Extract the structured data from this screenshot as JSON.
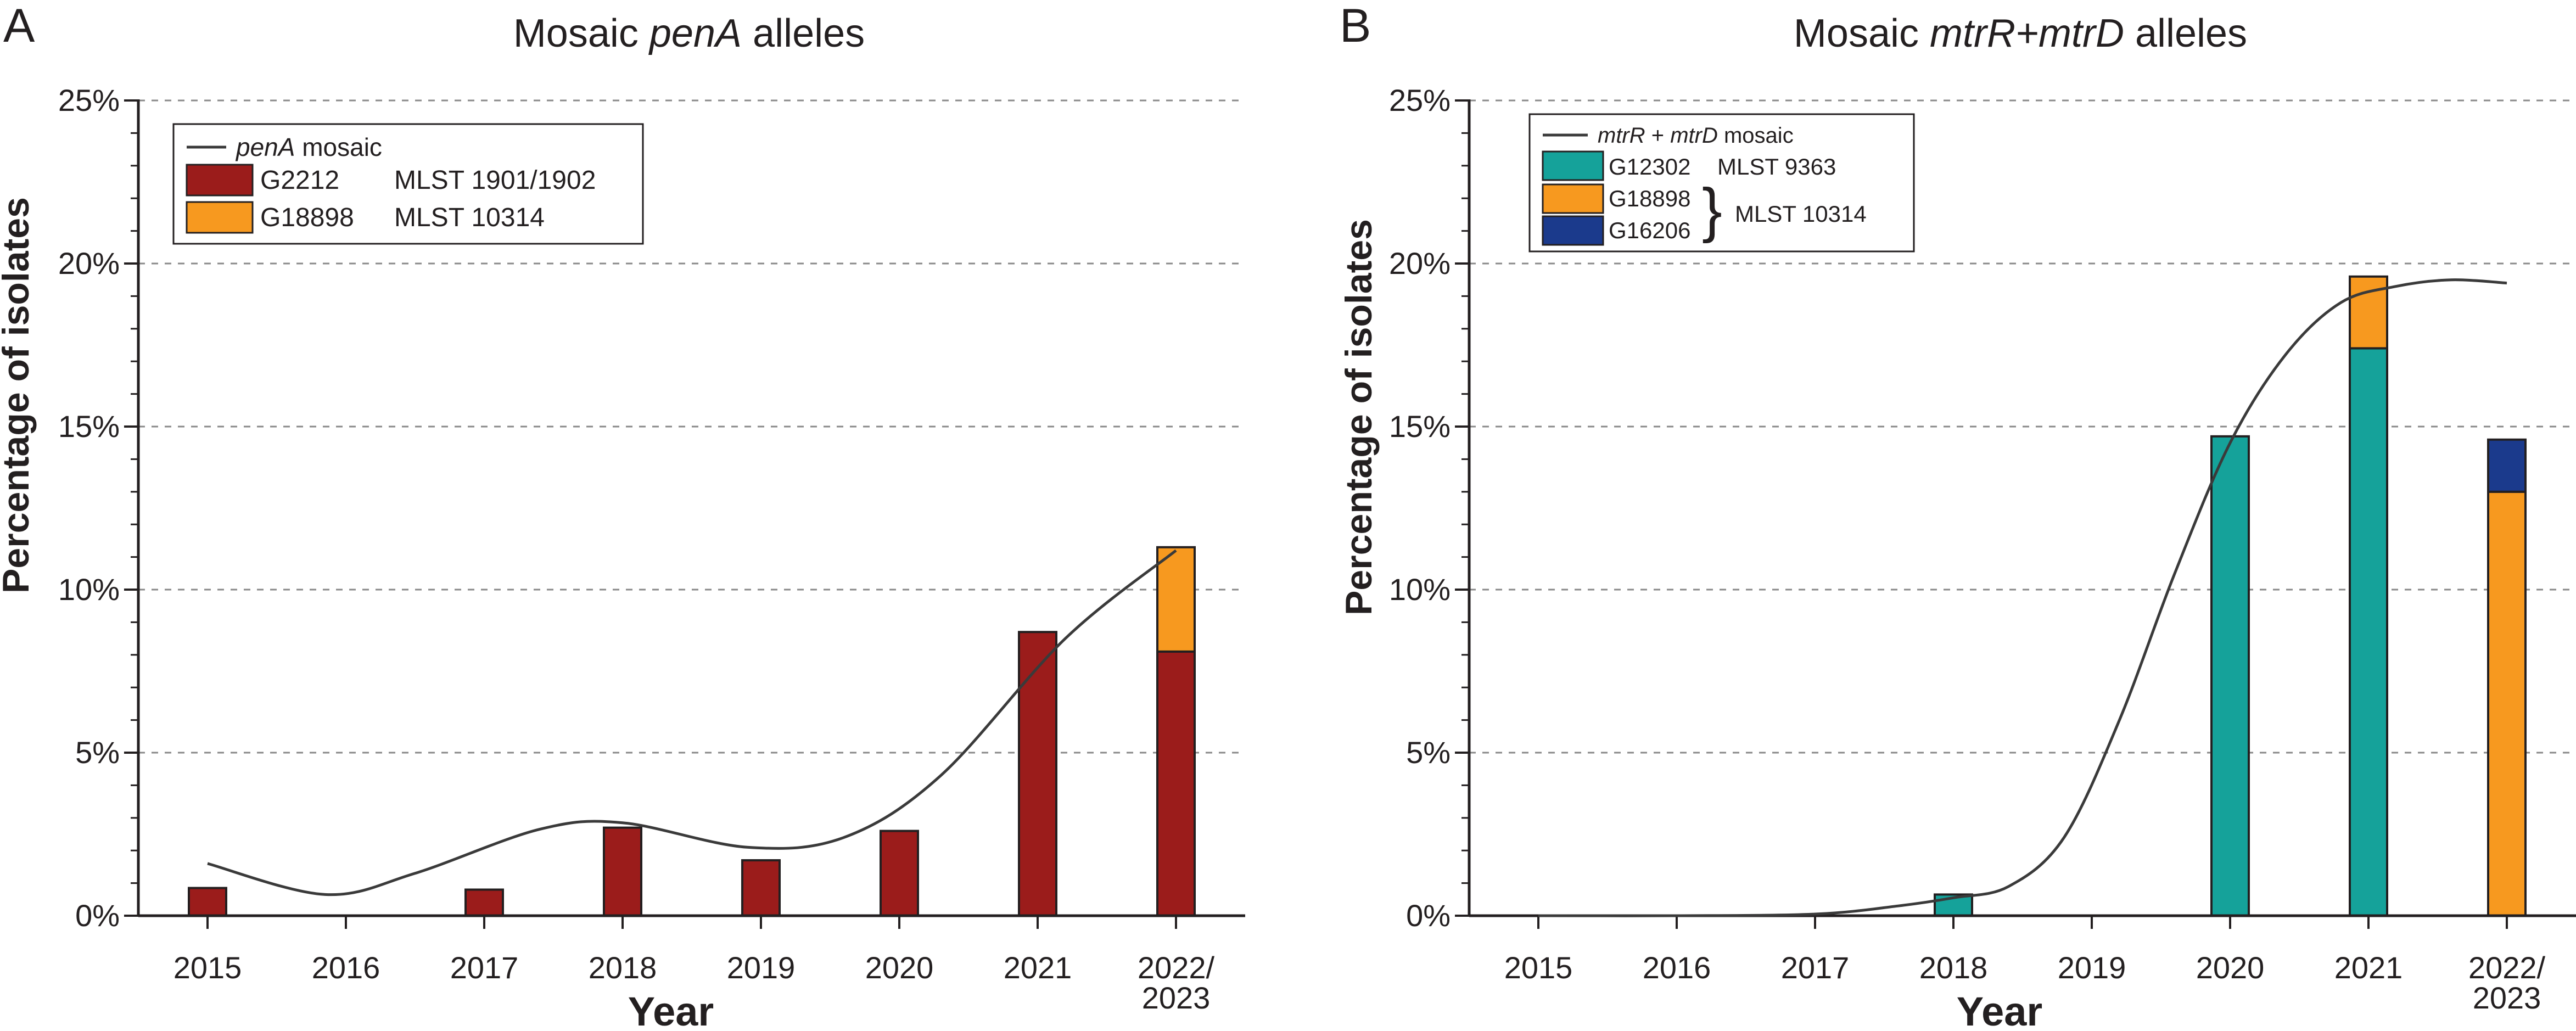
{
  "colors": {
    "g2212": "#9b1c1b",
    "g18898": "#f7991f",
    "g12302": "#15a29a",
    "g16206": "#1b3a8c",
    "line": "#3a3a3a",
    "grid": "#8a8a8a",
    "axis": "#231f20"
  },
  "chart_data": [
    {
      "type": "bar",
      "panel_letter": "A",
      "title": "Mosaic penA alleles",
      "title_parts": {
        "pre": "Mosaic ",
        "italic": "penA",
        "post": " alleles"
      },
      "xlabel": "Year",
      "ylabel": "Percentage of isolates",
      "ylim": [
        0,
        25
      ],
      "yticks": [
        0,
        5,
        10,
        15,
        20,
        25
      ],
      "ytick_labels": [
        "0%",
        "5%",
        "10%",
        "15%",
        "20%",
        "25%"
      ],
      "grid": true,
      "stacked": true,
      "categories": [
        "2015",
        "2016",
        "2017",
        "2018",
        "2019",
        "2020",
        "2021",
        "2022/2023"
      ],
      "category_labels": [
        [
          "2015"
        ],
        [
          "2016"
        ],
        [
          "2017"
        ],
        [
          "2018"
        ],
        [
          "2019"
        ],
        [
          "2020"
        ],
        [
          "2021"
        ],
        [
          "2022/",
          "2023"
        ]
      ],
      "series": [
        {
          "name": "G2212",
          "mlst": "MLST 1901/1902",
          "color_key": "g2212",
          "values": [
            0.85,
            0,
            0.8,
            2.7,
            1.7,
            2.6,
            8.7,
            8.1
          ]
        },
        {
          "name": "G18898",
          "mlst": "MLST 10314",
          "color_key": "g18898",
          "values": [
            0,
            0,
            0,
            0,
            0,
            0,
            0,
            3.2
          ]
        }
      ],
      "trend": {
        "name": "penA mosaic",
        "name_parts": {
          "italic": "penA",
          "post": " mosaic"
        },
        "x": [
          0,
          0.85,
          1.5,
          2.4,
          3,
          3.9,
          4.6,
          5.3,
          6.2,
          7
        ],
        "values": [
          1.6,
          0.65,
          1.3,
          2.65,
          2.85,
          2.1,
          2.4,
          4.3,
          8.5,
          11.2
        ]
      },
      "legend_brace_label": "",
      "legend_position": "top-left"
    },
    {
      "type": "bar",
      "panel_letter": "B",
      "title": "Mosaic mtrR+mtrD alleles",
      "title_parts": {
        "pre": "Mosaic ",
        "italic": "mtrR+mtrD",
        "post": " alleles"
      },
      "xlabel": "Year",
      "ylabel": "Percentage of isolates",
      "ylim": [
        0,
        25
      ],
      "yticks": [
        0,
        5,
        10,
        15,
        20,
        25
      ],
      "ytick_labels": [
        "0%",
        "5%",
        "10%",
        "15%",
        "20%",
        "25%"
      ],
      "grid": true,
      "stacked": true,
      "categories": [
        "2015",
        "2016",
        "2017",
        "2018",
        "2019",
        "2020",
        "2021",
        "2022/2023"
      ],
      "category_labels": [
        [
          "2015"
        ],
        [
          "2016"
        ],
        [
          "2017"
        ],
        [
          "2018"
        ],
        [
          "2019"
        ],
        [
          "2020"
        ],
        [
          "2021"
        ],
        [
          "2022/",
          "2023"
        ]
      ],
      "series": [
        {
          "name": "G12302",
          "mlst": "MLST 9363",
          "color_key": "g12302",
          "values": [
            0,
            0,
            0,
            0.65,
            0,
            14.7,
            17.4,
            0
          ]
        },
        {
          "name": "G18898",
          "mlst": "",
          "color_key": "g18898",
          "values": [
            0,
            0,
            0,
            0,
            0,
            0,
            2.2,
            13.0
          ]
        },
        {
          "name": "G16206",
          "mlst": "",
          "color_key": "g16206",
          "values": [
            0,
            0,
            0,
            0,
            0,
            0,
            0,
            1.6
          ]
        }
      ],
      "trend": {
        "name": "mtrR + mtrD mosaic",
        "name_parts": {
          "italic": "mtrR",
          "mid": " + ",
          "italic2": "mtrD",
          "post": " mosaic"
        },
        "x": [
          0,
          1,
          2,
          2.6,
          3,
          3.4,
          3.8,
          4.2,
          4.6,
          5,
          5.4,
          5.8,
          6.2,
          6.6,
          7
        ],
        "values": [
          0,
          0,
          0.05,
          0.3,
          0.55,
          0.9,
          2.4,
          6.0,
          10.5,
          14.5,
          17.2,
          18.8,
          19.3,
          19.5,
          19.4
        ]
      },
      "legend_brace_label": "MLST 10314",
      "legend_position": "top-left"
    }
  ]
}
